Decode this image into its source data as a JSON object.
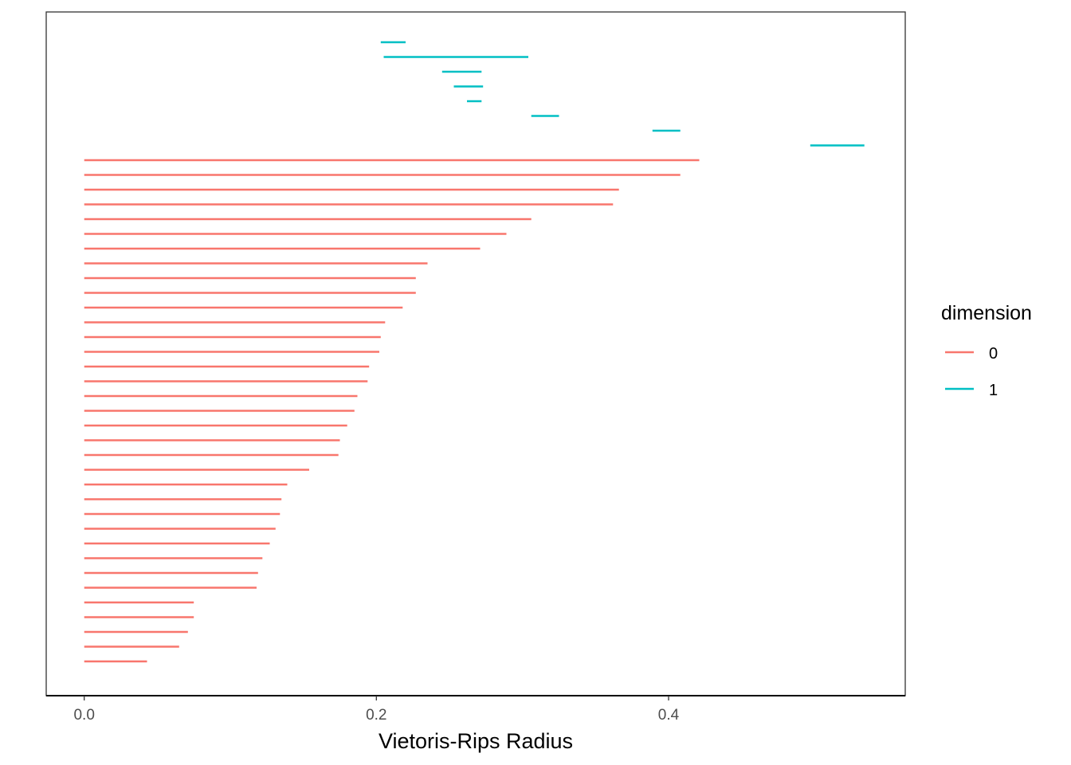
{
  "chart_data": {
    "type": "barcode",
    "xlabel": "Vietoris-Rips Radius",
    "ylabel": "",
    "xlim": [
      -0.026,
      0.562
    ],
    "x_ticks": [
      0.0,
      0.2,
      0.4
    ],
    "x_tick_labels": [
      "0.0",
      "0.2",
      "0.4"
    ],
    "grid": false,
    "legend": {
      "title": "dimension",
      "placement": "right",
      "entries": [
        {
          "label": "0",
          "color": "#F8766D"
        },
        {
          "label": "1",
          "color": "#00BFC4"
        }
      ]
    },
    "series": [
      {
        "name": "1",
        "color": "#00BFC4",
        "intervals": [
          [
            0.203,
            0.22
          ],
          [
            0.205,
            0.304
          ],
          [
            0.245,
            0.272
          ],
          [
            0.253,
            0.273
          ],
          [
            0.262,
            0.272
          ],
          [
            0.306,
            0.325
          ],
          [
            0.389,
            0.408
          ],
          [
            0.497,
            0.534
          ]
        ]
      },
      {
        "name": "0",
        "color": "#F8766D",
        "intervals": [
          [
            0,
            0.421
          ],
          [
            0,
            0.408
          ],
          [
            0,
            0.366
          ],
          [
            0,
            0.362
          ],
          [
            0,
            0.306
          ],
          [
            0,
            0.289
          ],
          [
            0,
            0.271
          ],
          [
            0,
            0.235
          ],
          [
            0,
            0.227
          ],
          [
            0,
            0.227
          ],
          [
            0,
            0.218
          ],
          [
            0,
            0.206
          ],
          [
            0,
            0.203
          ],
          [
            0,
            0.202
          ],
          [
            0,
            0.195
          ],
          [
            0,
            0.194
          ],
          [
            0,
            0.187
          ],
          [
            0,
            0.185
          ],
          [
            0,
            0.18
          ],
          [
            0,
            0.175
          ],
          [
            0,
            0.174
          ],
          [
            0,
            0.154
          ],
          [
            0,
            0.139
          ],
          [
            0,
            0.135
          ],
          [
            0,
            0.134
          ],
          [
            0,
            0.131
          ],
          [
            0,
            0.127
          ],
          [
            0,
            0.122
          ],
          [
            0,
            0.119
          ],
          [
            0,
            0.118
          ],
          [
            0,
            0.075
          ],
          [
            0,
            0.075
          ],
          [
            0,
            0.071
          ],
          [
            0,
            0.065
          ],
          [
            0,
            0.043
          ]
        ]
      }
    ]
  }
}
